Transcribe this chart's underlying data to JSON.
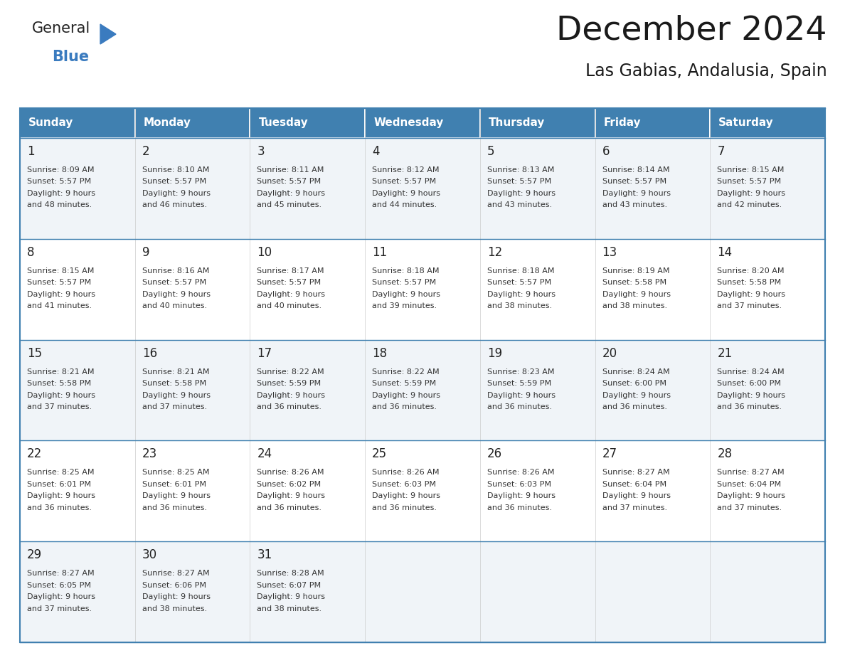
{
  "title": "December 2024",
  "subtitle": "Las Gabias, Andalusia, Spain",
  "header_color": "#4080b0",
  "header_text_color": "#ffffff",
  "row_colors": [
    "#f0f4f8",
    "#ffffff"
  ],
  "border_color": "#4080b0",
  "cell_border_color": "#4080b0",
  "day_names": [
    "Sunday",
    "Monday",
    "Tuesday",
    "Wednesday",
    "Thursday",
    "Friday",
    "Saturday"
  ],
  "days": [
    {
      "day": 1,
      "col": 0,
      "row": 0,
      "sunrise": "8:09 AM",
      "sunset": "5:57 PM",
      "minutes": "48 minutes."
    },
    {
      "day": 2,
      "col": 1,
      "row": 0,
      "sunrise": "8:10 AM",
      "sunset": "5:57 PM",
      "minutes": "46 minutes."
    },
    {
      "day": 3,
      "col": 2,
      "row": 0,
      "sunrise": "8:11 AM",
      "sunset": "5:57 PM",
      "minutes": "45 minutes."
    },
    {
      "day": 4,
      "col": 3,
      "row": 0,
      "sunrise": "8:12 AM",
      "sunset": "5:57 PM",
      "minutes": "44 minutes."
    },
    {
      "day": 5,
      "col": 4,
      "row": 0,
      "sunrise": "8:13 AM",
      "sunset": "5:57 PM",
      "minutes": "43 minutes."
    },
    {
      "day": 6,
      "col": 5,
      "row": 0,
      "sunrise": "8:14 AM",
      "sunset": "5:57 PM",
      "minutes": "43 minutes."
    },
    {
      "day": 7,
      "col": 6,
      "row": 0,
      "sunrise": "8:15 AM",
      "sunset": "5:57 PM",
      "minutes": "42 minutes."
    },
    {
      "day": 8,
      "col": 0,
      "row": 1,
      "sunrise": "8:15 AM",
      "sunset": "5:57 PM",
      "minutes": "41 minutes."
    },
    {
      "day": 9,
      "col": 1,
      "row": 1,
      "sunrise": "8:16 AM",
      "sunset": "5:57 PM",
      "minutes": "40 minutes."
    },
    {
      "day": 10,
      "col": 2,
      "row": 1,
      "sunrise": "8:17 AM",
      "sunset": "5:57 PM",
      "minutes": "40 minutes."
    },
    {
      "day": 11,
      "col": 3,
      "row": 1,
      "sunrise": "8:18 AM",
      "sunset": "5:57 PM",
      "minutes": "39 minutes."
    },
    {
      "day": 12,
      "col": 4,
      "row": 1,
      "sunrise": "8:18 AM",
      "sunset": "5:57 PM",
      "minutes": "38 minutes."
    },
    {
      "day": 13,
      "col": 5,
      "row": 1,
      "sunrise": "8:19 AM",
      "sunset": "5:58 PM",
      "minutes": "38 minutes."
    },
    {
      "day": 14,
      "col": 6,
      "row": 1,
      "sunrise": "8:20 AM",
      "sunset": "5:58 PM",
      "minutes": "37 minutes."
    },
    {
      "day": 15,
      "col": 0,
      "row": 2,
      "sunrise": "8:21 AM",
      "sunset": "5:58 PM",
      "minutes": "37 minutes."
    },
    {
      "day": 16,
      "col": 1,
      "row": 2,
      "sunrise": "8:21 AM",
      "sunset": "5:58 PM",
      "minutes": "37 minutes."
    },
    {
      "day": 17,
      "col": 2,
      "row": 2,
      "sunrise": "8:22 AM",
      "sunset": "5:59 PM",
      "minutes": "36 minutes."
    },
    {
      "day": 18,
      "col": 3,
      "row": 2,
      "sunrise": "8:22 AM",
      "sunset": "5:59 PM",
      "minutes": "36 minutes."
    },
    {
      "day": 19,
      "col": 4,
      "row": 2,
      "sunrise": "8:23 AM",
      "sunset": "5:59 PM",
      "minutes": "36 minutes."
    },
    {
      "day": 20,
      "col": 5,
      "row": 2,
      "sunrise": "8:24 AM",
      "sunset": "6:00 PM",
      "minutes": "36 minutes."
    },
    {
      "day": 21,
      "col": 6,
      "row": 2,
      "sunrise": "8:24 AM",
      "sunset": "6:00 PM",
      "minutes": "36 minutes."
    },
    {
      "day": 22,
      "col": 0,
      "row": 3,
      "sunrise": "8:25 AM",
      "sunset": "6:01 PM",
      "minutes": "36 minutes."
    },
    {
      "day": 23,
      "col": 1,
      "row": 3,
      "sunrise": "8:25 AM",
      "sunset": "6:01 PM",
      "minutes": "36 minutes."
    },
    {
      "day": 24,
      "col": 2,
      "row": 3,
      "sunrise": "8:26 AM",
      "sunset": "6:02 PM",
      "minutes": "36 minutes."
    },
    {
      "day": 25,
      "col": 3,
      "row": 3,
      "sunrise": "8:26 AM",
      "sunset": "6:03 PM",
      "minutes": "36 minutes."
    },
    {
      "day": 26,
      "col": 4,
      "row": 3,
      "sunrise": "8:26 AM",
      "sunset": "6:03 PM",
      "minutes": "36 minutes."
    },
    {
      "day": 27,
      "col": 5,
      "row": 3,
      "sunrise": "8:27 AM",
      "sunset": "6:04 PM",
      "minutes": "37 minutes."
    },
    {
      "day": 28,
      "col": 6,
      "row": 3,
      "sunrise": "8:27 AM",
      "sunset": "6:04 PM",
      "minutes": "37 minutes."
    },
    {
      "day": 29,
      "col": 0,
      "row": 4,
      "sunrise": "8:27 AM",
      "sunset": "6:05 PM",
      "minutes": "37 minutes."
    },
    {
      "day": 30,
      "col": 1,
      "row": 4,
      "sunrise": "8:27 AM",
      "sunset": "6:06 PM",
      "minutes": "38 minutes."
    },
    {
      "day": 31,
      "col": 2,
      "row": 4,
      "sunrise": "8:28 AM",
      "sunset": "6:07 PM",
      "minutes": "38 minutes."
    }
  ],
  "num_rows": 5,
  "num_cols": 7,
  "logo_text_general": "General",
  "logo_text_blue": "Blue",
  "logo_color_general": "#222222",
  "logo_color_blue": "#3a7bbf"
}
